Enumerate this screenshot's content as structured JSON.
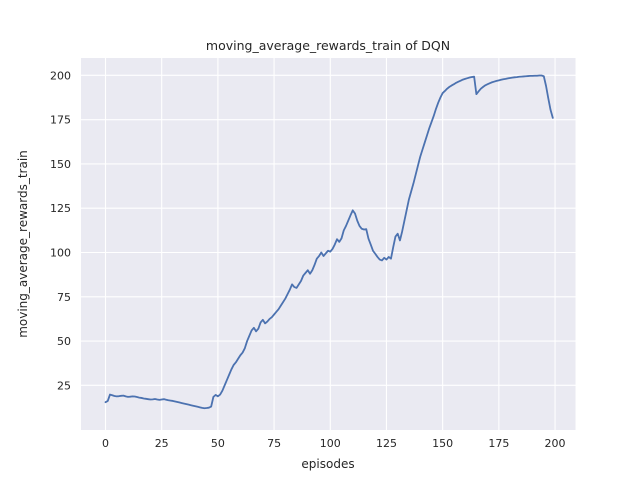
{
  "chart_data": {
    "type": "line",
    "title": "moving_average_rewards_train of DQN",
    "xlabel": "episodes",
    "ylabel": "moving_average_rewards_train",
    "xlim": [
      -10.9,
      209.1
    ],
    "ylim": [
      -0.2,
      209.8
    ],
    "xticks": [
      0,
      25,
      50,
      75,
      100,
      125,
      150,
      175,
      200
    ],
    "yticks": [
      25,
      50,
      75,
      100,
      125,
      150,
      175,
      200
    ],
    "grid": true,
    "legend_position": "none",
    "theme": {
      "plot_bg": "#eaeaf2",
      "grid_color": "#ffffff",
      "text_color": "#262626",
      "line_color": "#4c72b0",
      "figure_bg": "#ffffff"
    },
    "series": [
      {
        "name": "moving_average_rewards_train",
        "x_start": 0,
        "x_step": 1,
        "values": [
          15.5,
          16.2,
          19.8,
          19.4,
          19.0,
          18.8,
          18.9,
          19.1,
          19.2,
          18.8,
          18.5,
          18.6,
          18.8,
          18.7,
          18.4,
          18.1,
          17.9,
          17.6,
          17.4,
          17.2,
          17.0,
          17.1,
          17.3,
          17.0,
          16.8,
          17.0,
          17.2,
          16.9,
          16.6,
          16.4,
          16.2,
          15.9,
          15.6,
          15.3,
          15.0,
          14.7,
          14.4,
          14.1,
          13.8,
          13.5,
          13.2,
          12.9,
          12.6,
          12.3,
          12.1,
          12.2,
          12.4,
          13.0,
          18.5,
          19.6,
          18.8,
          19.8,
          22.0,
          25.0,
          28.0,
          31.0,
          34.0,
          36.5,
          38.0,
          40.0,
          42.0,
          43.5,
          46.0,
          50.0,
          53.0,
          56.0,
          57.5,
          55.5,
          57.0,
          60.5,
          62.0,
          60.0,
          61.0,
          62.5,
          63.5,
          65.0,
          66.5,
          68.0,
          70.0,
          72.0,
          74.0,
          76.5,
          79.0,
          82.0,
          80.5,
          80.0,
          82.0,
          84.0,
          87.0,
          88.5,
          90.0,
          88.0,
          90.0,
          93.0,
          96.5,
          98.0,
          100.0,
          98.0,
          99.5,
          101.0,
          100.5,
          102.0,
          104.5,
          107.5,
          106.0,
          108.0,
          112.5,
          115.0,
          118.0,
          121.0,
          123.8,
          122.0,
          118.0,
          115.0,
          113.4,
          113.0,
          113.2,
          107.8,
          104.5,
          101.0,
          99.3,
          97.5,
          96.0,
          95.5,
          97.0,
          96.0,
          97.5,
          96.5,
          103.0,
          109.0,
          110.6,
          106.8,
          112.0,
          118.0,
          124.0,
          130.0,
          134.5,
          139.0,
          144.0,
          149.0,
          154.0,
          158.0,
          162.0,
          166.0,
          170.0,
          173.5,
          177.0,
          181.0,
          184.5,
          187.5,
          190.0,
          191.2,
          192.5,
          193.5,
          194.3,
          195.0,
          195.8,
          196.4,
          197.0,
          197.6,
          198.0,
          198.4,
          198.8,
          199.1,
          199.3,
          189.4,
          191.0,
          192.5,
          193.5,
          194.4,
          195.0,
          195.6,
          196.1,
          196.5,
          196.9,
          197.2,
          197.5,
          197.8,
          198.0,
          198.3,
          198.5,
          198.7,
          198.9,
          199.0,
          199.2,
          199.3,
          199.4,
          199.5,
          199.6,
          199.7,
          199.7,
          199.8,
          199.8,
          199.9,
          199.9,
          199.5,
          194.0,
          187.0,
          180.5,
          176.0
        ]
      }
    ]
  }
}
